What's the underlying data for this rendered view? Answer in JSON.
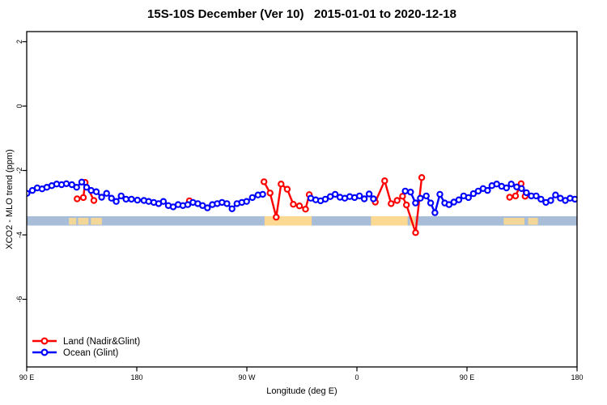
{
  "chart_data": {
    "type": "line",
    "title": "15S-10S December (Ver 10)   2015-01-01 to 2020-12-18",
    "xlabel": "Longitude (deg E)",
    "ylabel": "XCO2 - MLO trend (ppm)",
    "x_axis": {
      "range": [
        90,
        540
      ],
      "wrapped_longitude": true,
      "ticks": [
        {
          "pos": 90,
          "label": "90 E"
        },
        {
          "pos": 180,
          "label": "180"
        },
        {
          "pos": 270,
          "label": "90 W"
        },
        {
          "pos": 360,
          "label": "0"
        },
        {
          "pos": 450,
          "label": "90 E"
        },
        {
          "pos": 540,
          "label": "180"
        }
      ]
    },
    "y_axis": {
      "range": [
        -8.1,
        2.3
      ],
      "ticks": [
        {
          "pos": 2,
          "label": "2"
        },
        {
          "pos": 0,
          "label": "0"
        },
        {
          "pos": -2,
          "label": "-2"
        },
        {
          "pos": -4,
          "label": "-4"
        },
        {
          "pos": -6,
          "label": "-6"
        }
      ]
    },
    "legend": {
      "position": "bottom-left",
      "items": [
        "Land (Nadir&Glint)",
        "Ocean (Glint)"
      ]
    },
    "band": {
      "y_top": -3.42,
      "y_bottom": -3.71,
      "ocean_color": "#a8bdd7",
      "land_color": "#fbd992",
      "land_patches": [
        {
          "from": 124.5,
          "to": 130.5,
          "faint": true
        },
        {
          "from": 132.0,
          "to": 140.5,
          "faint": true
        },
        {
          "from": 142.5,
          "to": 151.5,
          "faint": true
        },
        {
          "from": 284.5,
          "to": 323.0,
          "faint": false
        },
        {
          "from": 371.5,
          "to": 401.5,
          "faint": false
        },
        {
          "from": 403.5,
          "to": 407.5,
          "faint": false
        },
        {
          "from": 480.0,
          "to": 497.0,
          "faint": true
        },
        {
          "from": 500.0,
          "to": 508.0,
          "faint": true
        }
      ]
    },
    "series": [
      {
        "name": "Land (Nadir&Glint)",
        "color": "#ff0000",
        "marker": "open-circle",
        "segments": [
          [
            [
              131.2,
              -2.88
            ],
            [
              136.3,
              -2.84
            ],
            [
              137.8,
              -2.37
            ],
            [
              144.9,
              -2.93
            ]
          ],
          [
            [
              223.0,
              -2.94
            ]
          ],
          [
            [
              284.0,
              -2.35
            ],
            [
              289.0,
              -2.7
            ],
            [
              294.0,
              -3.45
            ],
            [
              298.0,
              -2.42
            ],
            [
              303.0,
              -2.58
            ],
            [
              308.0,
              -3.05
            ],
            [
              313.0,
              -3.1
            ],
            [
              318.0,
              -3.2
            ],
            [
              321.0,
              -2.75
            ]
          ],
          [
            [
              375.0,
              -2.98
            ],
            [
              382.7,
              -2.32
            ],
            [
              388.0,
              -3.03
            ],
            [
              392.9,
              -2.93
            ],
            [
              397.3,
              -2.8
            ],
            [
              400.5,
              -3.07
            ],
            [
              408.0,
              -3.93
            ],
            [
              413.0,
              -2.22
            ]
          ],
          [
            [
              484.9,
              -2.83
            ],
            [
              489.7,
              -2.79
            ],
            [
              494.3,
              -2.41
            ],
            [
              497.5,
              -2.8
            ]
          ]
        ]
      },
      {
        "name": "Ocean (Glint)",
        "color": "#0000ff",
        "marker": "open-circle",
        "segments": [
          [
            [
              90.2,
              -2.71
            ],
            [
              94.6,
              -2.62
            ],
            [
              98.6,
              -2.54
            ],
            [
              102.6,
              -2.57
            ],
            [
              106.5,
              -2.52
            ],
            [
              110.5,
              -2.47
            ],
            [
              114.5,
              -2.42
            ],
            [
              118.5,
              -2.44
            ],
            [
              122.4,
              -2.41
            ],
            [
              126.9,
              -2.44
            ],
            [
              130.8,
              -2.52
            ],
            [
              135.0,
              -2.36
            ],
            [
              139.0,
              -2.52
            ],
            [
              142.7,
              -2.62
            ],
            [
              146.9,
              -2.66
            ],
            [
              151.3,
              -2.83
            ],
            [
              155.3,
              -2.71
            ],
            [
              159.3,
              -2.86
            ],
            [
              163.2,
              -2.96
            ],
            [
              167.2,
              -2.79
            ],
            [
              171.2,
              -2.89
            ],
            [
              175.6,
              -2.89
            ],
            [
              180.5,
              -2.92
            ],
            [
              185.8,
              -2.93
            ],
            [
              189.7,
              -2.96
            ],
            [
              193.9,
              -2.99
            ],
            [
              197.9,
              -3.03
            ],
            [
              201.8,
              -2.96
            ],
            [
              205.8,
              -3.09
            ],
            [
              209.8,
              -3.13
            ],
            [
              213.8,
              -3.06
            ],
            [
              217.7,
              -3.09
            ],
            [
              221.7,
              -3.06
            ],
            [
              225.9,
              -2.99
            ],
            [
              229.9,
              -3.03
            ],
            [
              233.8,
              -3.09
            ],
            [
              237.8,
              -3.16
            ],
            [
              241.8,
              -3.06
            ],
            [
              245.8,
              -3.03
            ],
            [
              249.7,
              -2.99
            ],
            [
              253.7,
              -3.03
            ],
            [
              257.9,
              -3.19
            ],
            [
              261.9,
              -3.03
            ],
            [
              265.9,
              -2.99
            ],
            [
              269.8,
              -2.96
            ],
            [
              274.5,
              -2.84
            ],
            [
              279.1,
              -2.76
            ],
            [
              283.0,
              -2.74
            ]
          ],
          [
            [
              322.3,
              -2.86
            ],
            [
              326.3,
              -2.91
            ],
            [
              330.3,
              -2.94
            ],
            [
              334.2,
              -2.89
            ],
            [
              338.2,
              -2.81
            ],
            [
              342.2,
              -2.74
            ],
            [
              346.2,
              -2.83
            ],
            [
              350.1,
              -2.86
            ],
            [
              354.1,
              -2.81
            ],
            [
              358.1,
              -2.84
            ],
            [
              362.1,
              -2.79
            ],
            [
              366.0,
              -2.88
            ],
            [
              370.0,
              -2.73
            ],
            [
              373.5,
              -2.88
            ]
          ],
          [
            [
              399.5,
              -2.64
            ],
            [
              403.9,
              -2.67
            ],
            [
              407.9,
              -3.01
            ],
            [
              411.9,
              -2.86
            ],
            [
              416.7,
              -2.79
            ],
            [
              420.3,
              -3.01
            ],
            [
              423.8,
              -3.31
            ],
            [
              427.8,
              -2.74
            ],
            [
              431.8,
              -3.01
            ],
            [
              435.3,
              -3.06
            ],
            [
              439.3,
              -2.98
            ],
            [
              443.3,
              -2.91
            ],
            [
              447.3,
              -2.79
            ],
            [
              451.2,
              -2.84
            ],
            [
              455.2,
              -2.72
            ],
            [
              459.2,
              -2.64
            ],
            [
              463.2,
              -2.56
            ],
            [
              466.8,
              -2.62
            ],
            [
              470.4,
              -2.47
            ],
            [
              474.3,
              -2.42
            ],
            [
              478.3,
              -2.49
            ],
            [
              482.3,
              -2.54
            ],
            [
              486.2,
              -2.42
            ],
            [
              490.6,
              -2.51
            ],
            [
              494.6,
              -2.56
            ],
            [
              498.6,
              -2.69
            ],
            [
              502.6,
              -2.79
            ],
            [
              506.6,
              -2.79
            ],
            [
              510.5,
              -2.89
            ],
            [
              514.5,
              -2.99
            ],
            [
              518.5,
              -2.93
            ],
            [
              522.4,
              -2.76
            ],
            [
              526.4,
              -2.86
            ],
            [
              530.4,
              -2.93
            ],
            [
              534.3,
              -2.86
            ],
            [
              538.3,
              -2.89
            ]
          ]
        ]
      }
    ]
  }
}
